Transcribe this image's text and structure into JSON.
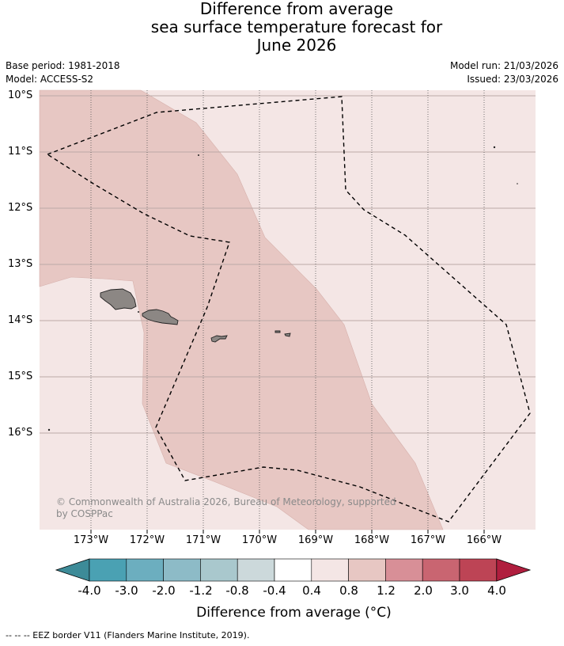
{
  "title": {
    "line1": "Difference from average",
    "line2": "sea surface temperature forecast for",
    "line3": "June 2026"
  },
  "meta": {
    "base_period": "Base period: 1981-2018",
    "model": "Model: ACCESS-S2",
    "model_run": "Model run: 21/03/2026",
    "issued": "Issued: 23/03/2026"
  },
  "map": {
    "lat_labels": [
      "10°S",
      "11°S",
      "12°S",
      "13°S",
      "14°S",
      "15°S",
      "16°S"
    ],
    "lon_labels": [
      "173°W",
      "172°W",
      "171°W",
      "170°W",
      "169°W",
      "168°W",
      "167°W",
      "166°W"
    ],
    "category_colors": {
      "0.4_to_0.8": "#f4e6e5",
      "0.8_to_1.2": "#e7c7c3",
      "land": "#8c8784"
    },
    "copyright": "© Commonwealth of Australia 2026, Bureau of Meteorology, supported by COSPPac"
  },
  "colorbar": {
    "ticks": [
      "-4.0",
      "-3.0",
      "-2.0",
      "-1.2",
      "-0.8",
      "-0.4",
      "0.4",
      "0.8",
      "1.2",
      "2.0",
      "3.0",
      "4.0"
    ],
    "colors": [
      "#3d8b98",
      "#4aa1b3",
      "#6caebf",
      "#8dbbc7",
      "#a9c8cd",
      "#ccd9db",
      "#ffffff",
      "#f4e6e5",
      "#e7c7c3",
      "#d88f97",
      "#c96571",
      "#bd4455",
      "#b01e3e"
    ],
    "label": "Difference from average ($^\\circ$C)",
    "label_display": "Difference from average (°C)"
  },
  "footnote": "-- -- -- EEZ border V11 (Flanders Marine Institute, 2019)."
}
